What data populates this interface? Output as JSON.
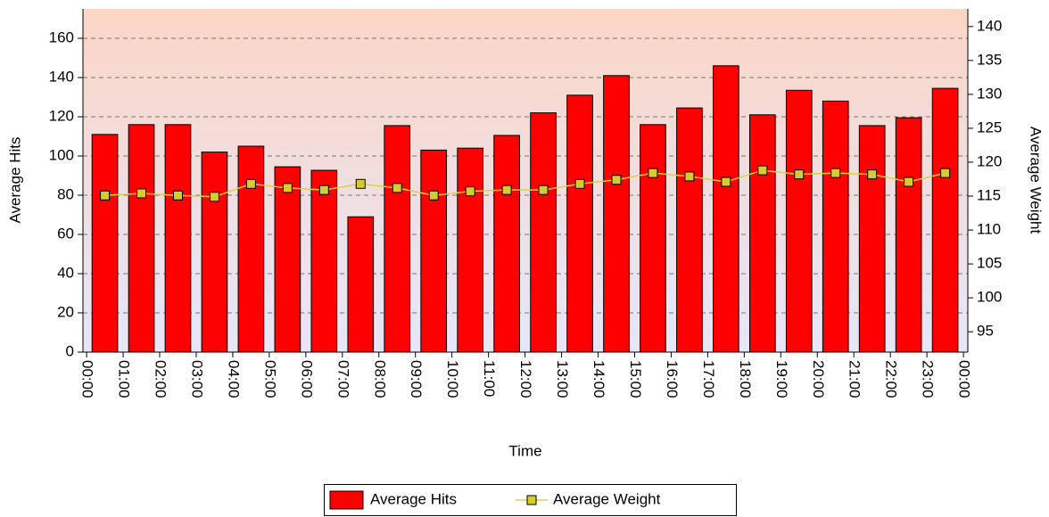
{
  "chart_data": {
    "type": "bar",
    "x_label": "Time",
    "y_label": "Average Hits",
    "y2_label": "Average Weight",
    "x": [
      0.5,
      1.5,
      2.5,
      3.5,
      4.5,
      5.5,
      6.5,
      7.5,
      8.5,
      9.5,
      10.5,
      11.5,
      12.5,
      13.5,
      14.5,
      15.5,
      16.5,
      17.5,
      18.5,
      19.5,
      20.5,
      21.5,
      22.5,
      23.5
    ],
    "xlim": [
      -0.1,
      24.12
    ],
    "xticks": [
      {
        "value": 0,
        "label": "00:00"
      },
      {
        "value": 1,
        "label": "01:00"
      },
      {
        "value": 2,
        "label": "02:00"
      },
      {
        "value": 3,
        "label": "03:00"
      },
      {
        "value": 4,
        "label": "04:00"
      },
      {
        "value": 5,
        "label": "05:00"
      },
      {
        "value": 6,
        "label": "06:00"
      },
      {
        "value": 7,
        "label": "07:00"
      },
      {
        "value": 8,
        "label": "08:00"
      },
      {
        "value": 9,
        "label": "09:00"
      },
      {
        "value": 10,
        "label": "10:00"
      },
      {
        "value": 11,
        "label": "11:00"
      },
      {
        "value": 12,
        "label": "12:00"
      },
      {
        "value": 13,
        "label": "13:00"
      },
      {
        "value": 14,
        "label": "14:00"
      },
      {
        "value": 15,
        "label": "15:00"
      },
      {
        "value": 16,
        "label": "16:00"
      },
      {
        "value": 17,
        "label": "17:00"
      },
      {
        "value": 18,
        "label": "18:00"
      },
      {
        "value": 19,
        "label": "19:00"
      },
      {
        "value": 20,
        "label": "20:00"
      },
      {
        "value": 21,
        "label": "21:00"
      },
      {
        "value": 22,
        "label": "22:00"
      },
      {
        "value": 23,
        "label": "23:00"
      },
      {
        "value": 24,
        "label": "00:00"
      }
    ],
    "ylim": [
      0,
      175
    ],
    "yticks": [
      0,
      20,
      40,
      60,
      80,
      100,
      120,
      140,
      160
    ],
    "y2lim": [
      92,
      142.6
    ],
    "y2ticks": [
      95,
      100,
      105,
      110,
      115,
      120,
      125,
      130,
      135,
      140
    ],
    "grid": true,
    "legend": "bottom",
    "series": [
      {
        "name": "Average Hits",
        "type": "bar",
        "color": "#ff0000",
        "values": [
          111,
          116,
          116,
          102,
          105,
          94.5,
          92.7,
          69,
          115.5,
          103,
          104,
          110.5,
          122,
          131,
          141,
          116,
          124.5,
          146,
          121,
          133.5,
          128,
          115.5,
          119.5,
          134.5
        ]
      },
      {
        "name": "Average Weight",
        "type": "line",
        "axis": "y2",
        "color": "#e0d040",
        "marker_color": "#d4cc30",
        "values": [
          115.1,
          115.4,
          115.1,
          114.9,
          116.8,
          116.2,
          115.9,
          116.8,
          116.2,
          115.1,
          115.7,
          115.9,
          115.9,
          116.8,
          117.4,
          118.4,
          117.9,
          117.1,
          118.8,
          118.2,
          118.4,
          118.2,
          117.1,
          118.4
        ]
      }
    ]
  }
}
